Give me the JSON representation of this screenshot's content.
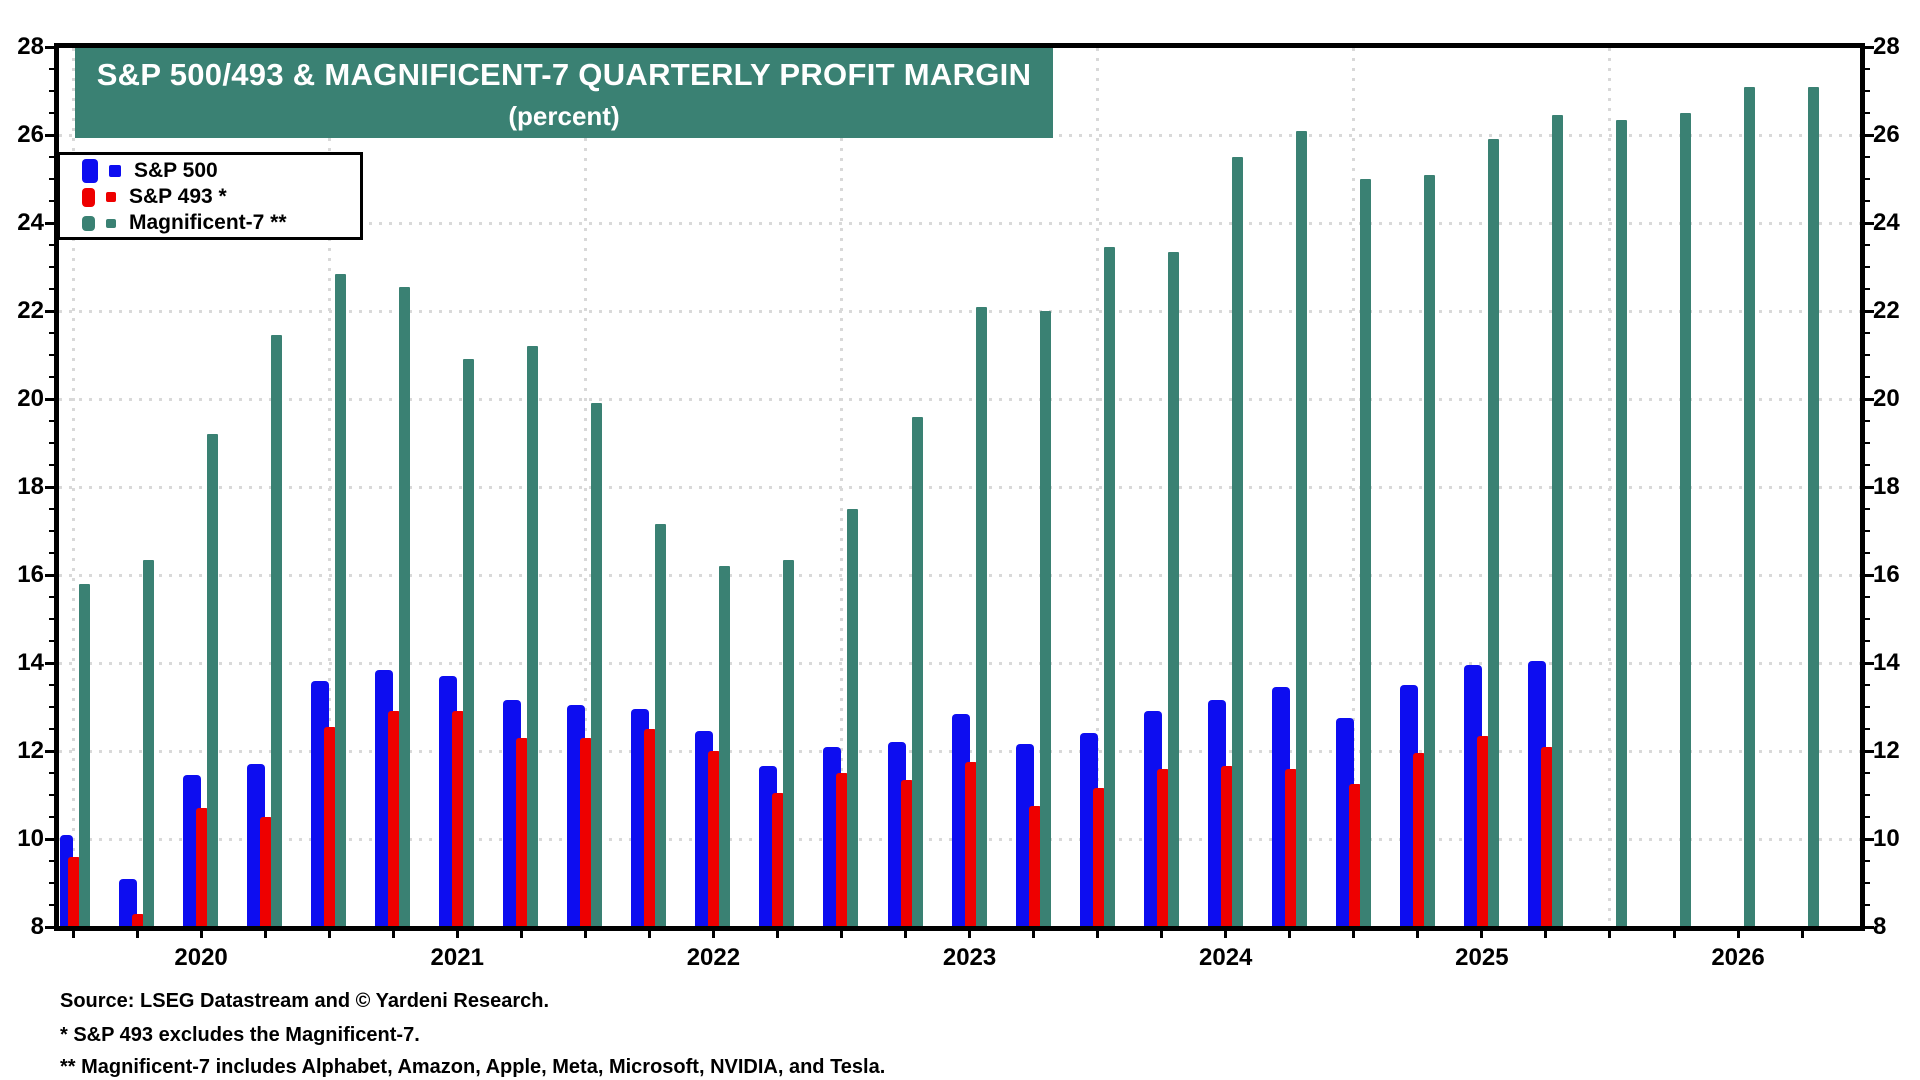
{
  "chart_data": {
    "type": "bar",
    "title": "S&P 500/493 & MAGNIFICENT-7 QUARTERLY PROFIT MARGIN",
    "subtitle": "(percent)",
    "banner_bg": "#3A8173",
    "banner_text_color": "#FFFFFF",
    "grid": "dotted",
    "grid_color": "#D9D9D9",
    "legend_position": "top-left",
    "y_axis": {
      "min": 8,
      "max": 28,
      "major_step": 2,
      "minor_step": 0.5,
      "sides": "both",
      "tick_labels": [
        "8",
        "10",
        "12",
        "14",
        "16",
        "18",
        "20",
        "22",
        "24",
        "26",
        "28"
      ]
    },
    "x_axis": {
      "years": [
        {
          "label": "2020",
          "quarter_index": 2
        },
        {
          "label": "2021",
          "quarter_index": 6
        },
        {
          "label": "2022",
          "quarter_index": 10
        },
        {
          "label": "2023",
          "quarter_index": 14
        },
        {
          "label": "2024",
          "quarter_index": 18
        },
        {
          "label": "2025",
          "quarter_index": 22
        },
        {
          "label": "2026",
          "quarter_index": 26
        }
      ]
    },
    "quarters": [
      "2019-Q3",
      "2019-Q4",
      "2020-Q1",
      "2020-Q2",
      "2020-Q3",
      "2020-Q4",
      "2021-Q1",
      "2021-Q2",
      "2021-Q3",
      "2021-Q4",
      "2022-Q1",
      "2022-Q2",
      "2022-Q3",
      "2022-Q4",
      "2023-Q1",
      "2023-Q2",
      "2023-Q3",
      "2023-Q4",
      "2024-Q1",
      "2024-Q2",
      "2024-Q3",
      "2024-Q4",
      "2025-Q1",
      "2025-Q2",
      "2025-Q3",
      "2025-Q4",
      "2026-Q1",
      "2026-Q2"
    ],
    "series": [
      {
        "name": "S&P 500",
        "color": "#0D0DF0",
        "values": [
          10.1,
          9.1,
          11.45,
          11.7,
          13.6,
          13.85,
          13.7,
          13.15,
          13.05,
          12.95,
          12.45,
          11.65,
          12.1,
          12.2,
          12.85,
          12.15,
          12.4,
          12.9,
          13.15,
          13.45,
          12.75,
          13.5,
          13.95,
          14.05,
          null,
          null,
          null,
          null
        ]
      },
      {
        "name": "S&P 493 *",
        "color": "#EE0000",
        "values": [
          9.6,
          8.3,
          10.7,
          10.5,
          12.55,
          12.9,
          12.9,
          12.3,
          12.3,
          12.5,
          12.0,
          11.05,
          11.5,
          11.35,
          11.75,
          10.75,
          11.15,
          11.6,
          11.65,
          11.6,
          11.25,
          11.95,
          12.35,
          12.1,
          null,
          null,
          null,
          null
        ]
      },
      {
        "name": "Magnificent-7 **",
        "color": "#3A8173",
        "values": [
          15.8,
          16.35,
          19.2,
          21.45,
          22.85,
          22.55,
          20.9,
          21.2,
          19.9,
          17.15,
          16.2,
          16.35,
          17.5,
          19.6,
          22.1,
          22.0,
          23.45,
          23.35,
          25.5,
          26.1,
          25.0,
          25.1,
          25.9,
          26.45,
          26.35,
          26.5,
          27.1,
          27.1
        ]
      }
    ]
  },
  "footnotes": {
    "source": "Source: LSEG Datastream and © Yardeni Research.",
    "note1": "* S&P 493 excludes the Magnificent-7.",
    "note2": "** Magnificent-7 includes Alphabet, Amazon, Apple, Meta, Microsoft, NVIDIA, and Tesla."
  }
}
